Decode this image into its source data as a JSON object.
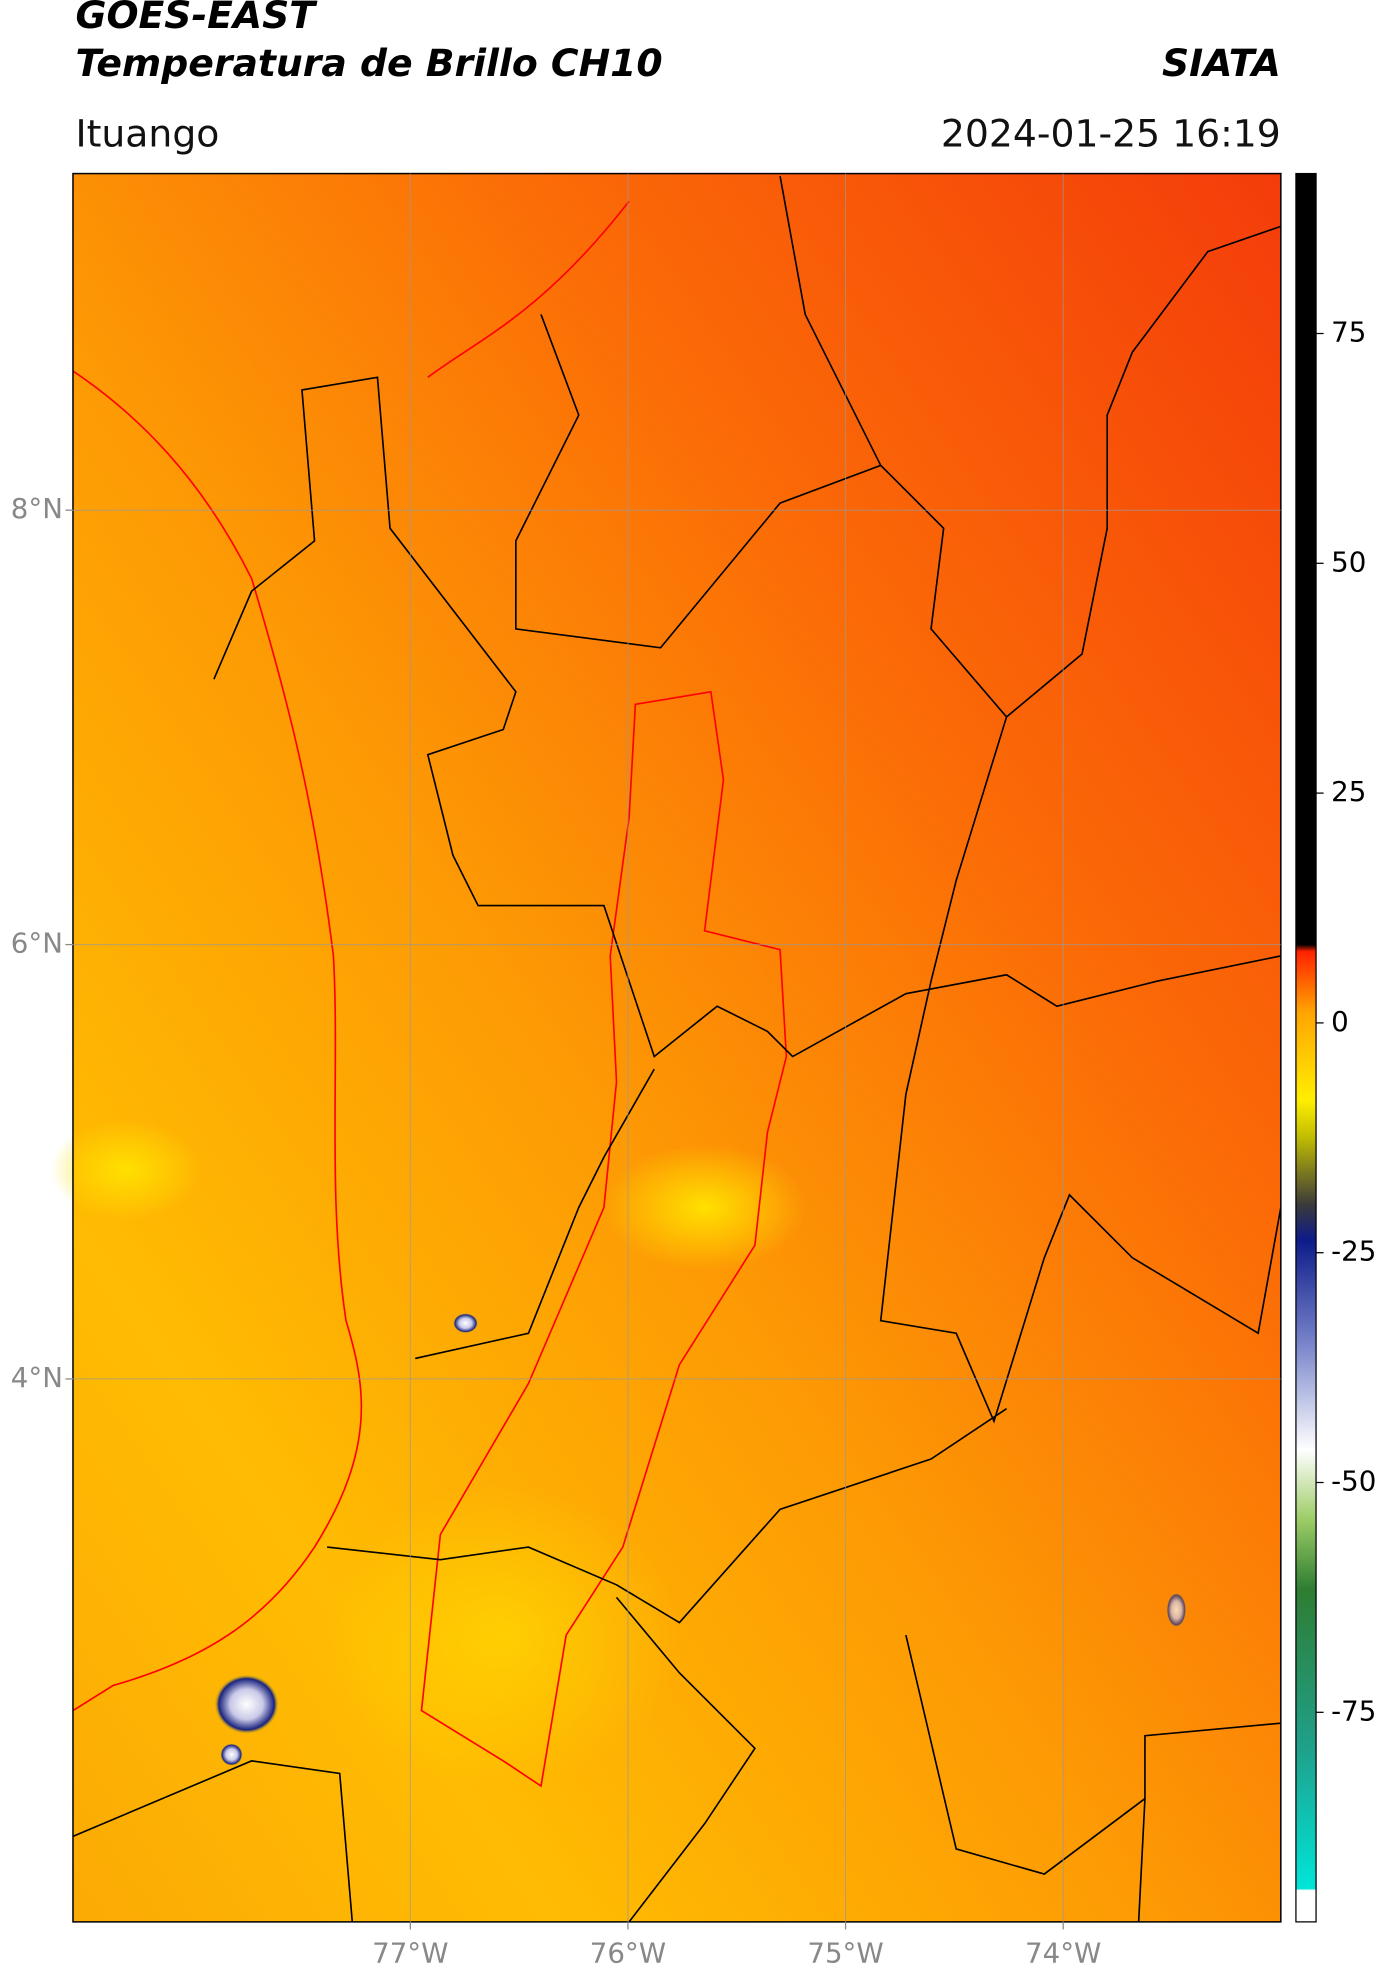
{
  "header": {
    "title": "GOES-EAST",
    "subtitle": "Temperatura de Brillo CH10",
    "source": "SIATA",
    "location": "Ituango",
    "datetime": "2024-01-25 16:19"
  },
  "chart_data": {
    "type": "map",
    "xlim": [
      -78.55,
      -73.0
    ],
    "ylim": [
      1.5,
      9.55
    ],
    "xticks": [
      {
        "value": -77,
        "label": "77°W"
      },
      {
        "value": -76,
        "label": "76°W"
      },
      {
        "value": -75,
        "label": "75°W"
      },
      {
        "value": -74,
        "label": "74°W"
      }
    ],
    "yticks": [
      {
        "value": 4,
        "label": "4°N"
      },
      {
        "value": 6,
        "label": "6°N"
      },
      {
        "value": 8,
        "label": "8°N"
      }
    ],
    "grid": true,
    "colorbar": {
      "lim": [
        -97.8,
        92.4
      ],
      "ticks": [
        -75,
        -50,
        -25,
        0,
        25,
        50,
        75
      ]
    }
  }
}
